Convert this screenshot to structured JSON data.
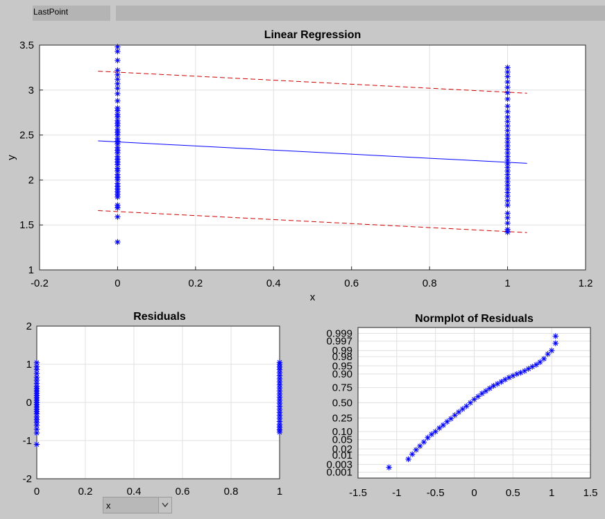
{
  "lastpoint_label": "LastPoint",
  "dropdown": {
    "value": "x"
  },
  "colors": {
    "points": "#0000ff",
    "fit": "#0000ff",
    "bounds": "#cc0000",
    "axes_bg": "#ffffff",
    "grid": "#e0e0e0"
  },
  "chart_data": [
    {
      "type": "scatter",
      "title": "Linear Regression",
      "xlabel": "x",
      "ylabel": "y",
      "xlim": [
        -0.2,
        1.2
      ],
      "ylim": [
        1,
        3.5
      ],
      "xticks": [
        "-0.2",
        "0",
        "0.2",
        "0.4",
        "0.6",
        "0.8",
        "1",
        "1.2"
      ],
      "yticks": [
        "1",
        "1.5",
        "2",
        "2.5",
        "3",
        "3.5"
      ],
      "marker": "asterisk",
      "series": [
        {
          "x": 0,
          "y": [
            1.31,
            1.59,
            1.69,
            1.72,
            1.81,
            1.84,
            1.87,
            1.9,
            1.93,
            1.96,
            2.0,
            2.03,
            2.06,
            2.1,
            2.13,
            2.17,
            2.2,
            2.23,
            2.26,
            2.3,
            2.33,
            2.36,
            2.4,
            2.43,
            2.46,
            2.5,
            2.53,
            2.56,
            2.6,
            2.63,
            2.66,
            2.7,
            2.73,
            2.77,
            2.8,
            2.88,
            2.96,
            3.02,
            3.07,
            3.12,
            3.17,
            3.22,
            3.33,
            3.43,
            3.48
          ]
        },
        {
          "x": 1,
          "y": [
            1.42,
            1.45,
            1.52,
            1.58,
            1.63,
            1.72,
            1.77,
            1.82,
            1.86,
            1.9,
            1.94,
            1.98,
            2.02,
            2.06,
            2.1,
            2.14,
            2.18,
            2.22,
            2.26,
            2.3,
            2.34,
            2.38,
            2.42,
            2.46,
            2.5,
            2.55,
            2.6,
            2.65,
            2.7,
            2.76,
            2.82,
            2.9,
            2.97,
            3.03,
            3.09,
            3.15,
            3.2,
            3.25
          ]
        }
      ],
      "fit": {
        "x": [
          -0.05,
          1.05
        ],
        "y": [
          2.435,
          2.185
        ]
      },
      "upper_bound": {
        "x": [
          -0.05,
          1.05
        ],
        "y": [
          3.21,
          2.965
        ]
      },
      "lower_bound": {
        "x": [
          -0.05,
          1.05
        ],
        "y": [
          1.66,
          1.415
        ]
      }
    },
    {
      "type": "scatter",
      "title": "Residuals",
      "xlim": [
        0,
        1
      ],
      "ylim": [
        -2,
        2
      ],
      "xticks": [
        "0",
        "0.2",
        "0.4",
        "0.6",
        "0.8",
        "1"
      ],
      "yticks": [
        "-2",
        "-1",
        "0",
        "1",
        "2"
      ],
      "marker": "asterisk",
      "series": [
        {
          "x": 0,
          "y": [
            -1.1,
            -0.8,
            -0.7,
            -0.6,
            -0.52,
            -0.45,
            -0.38,
            -0.3,
            -0.24,
            -0.18,
            -0.12,
            -0.06,
            0.0,
            0.06,
            0.12,
            0.18,
            0.24,
            0.3,
            0.36,
            0.42,
            0.5,
            0.58,
            0.66,
            0.76,
            0.86,
            0.94,
            1.04
          ]
        },
        {
          "x": 1,
          "y": [
            -0.78,
            -0.72,
            -0.65,
            -0.58,
            -0.5,
            -0.42,
            -0.34,
            -0.26,
            -0.18,
            -0.1,
            -0.02,
            0.06,
            0.14,
            0.22,
            0.3,
            0.38,
            0.46,
            0.54,
            0.62,
            0.7,
            0.78,
            0.86,
            0.93,
            1.0,
            1.05
          ]
        }
      ]
    },
    {
      "type": "scatter",
      "title": "Normplot of Residuals",
      "xlim": [
        -1.5,
        1.5
      ],
      "xticks": [
        "-1.5",
        "-1",
        "-0.5",
        "0",
        "0.5",
        "1",
        "1.5"
      ],
      "yticks": [
        "0.001",
        "0.003",
        "0.01",
        "0.02",
        "0.05",
        "0.10",
        "0.25",
        "0.50",
        "0.75",
        "0.90",
        "0.95",
        "0.98",
        "0.99",
        "0.997",
        "0.999"
      ],
      "marker": "asterisk",
      "series": [
        {
          "x": [
            -1.1,
            -0.85,
            -0.8,
            -0.75,
            -0.7,
            -0.65,
            -0.6,
            -0.55,
            -0.5,
            -0.45,
            -0.4,
            -0.35,
            -0.3,
            -0.25,
            -0.2,
            -0.15,
            -0.1,
            -0.05,
            0.0,
            0.05,
            0.1,
            0.15,
            0.2,
            0.25,
            0.3,
            0.35,
            0.4,
            0.45,
            0.5,
            0.55,
            0.6,
            0.65,
            0.7,
            0.75,
            0.8,
            0.85,
            0.9,
            0.95,
            1.0,
            1.05,
            1.05
          ],
          "y": [
            0.002,
            0.006,
            0.011,
            0.018,
            0.027,
            0.04,
            0.06,
            0.08,
            0.1,
            0.13,
            0.16,
            0.2,
            0.24,
            0.29,
            0.34,
            0.39,
            0.44,
            0.5,
            0.56,
            0.61,
            0.66,
            0.7,
            0.74,
            0.775,
            0.8,
            0.825,
            0.85,
            0.87,
            0.885,
            0.9,
            0.91,
            0.922,
            0.935,
            0.946,
            0.955,
            0.965,
            0.975,
            0.985,
            0.99,
            0.996,
            0.9985
          ]
        }
      ]
    }
  ]
}
